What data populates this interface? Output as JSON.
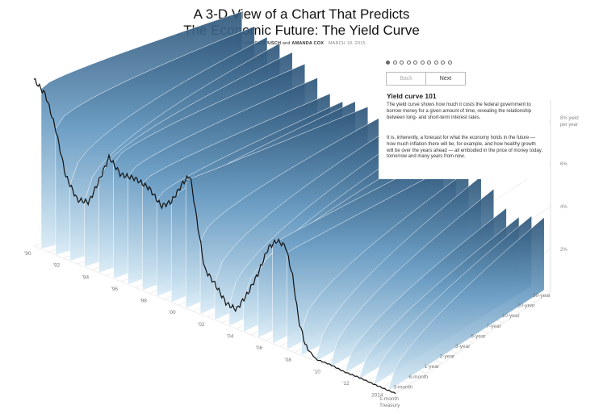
{
  "header": {
    "title_line1": "A 3-D View of a Chart That Predicts",
    "title_line2": "The Economic Future: The Yield Curve",
    "byline_by": "By",
    "author1": "GREGOR AISCH",
    "byline_and": "and",
    "author2": "AMANDA COX",
    "date": "MARCH 18, 2015"
  },
  "panel": {
    "dots": [
      true,
      false,
      false,
      false,
      false,
      false,
      false,
      false,
      false,
      false
    ],
    "back_label": "Back",
    "next_label": "Next",
    "title": "Yield curve 101",
    "para1": "The yield curve shows how much it costs the federal government to borrow money for a given amount of time, revealing the relationship between long- and short-term interest rates.",
    "para2": "It is, inherently, a forecast for what the economy holds in the future — how much inflation there will be, for example, and how healthy growth will be over the years ahead — all embodied in the price of money today, tomorrow and many years from now."
  },
  "chart_data": {
    "type": "area",
    "view": "3-D surface",
    "x_axis": {
      "label": "year",
      "ticks": [
        "'90",
        "'92",
        "'94",
        "'96",
        "'98",
        "'00",
        "'02",
        "'04",
        "'06",
        "'08",
        "'10",
        "'12",
        "2014"
      ]
    },
    "maturity_axis": {
      "ticks": [
        "1-month Treasury",
        "3-month",
        "6-month",
        "1-year",
        "2-year",
        "3-year",
        "5-year",
        "7-year",
        "10-year",
        "20-year",
        "30-year"
      ]
    },
    "y_axis": {
      "ticks": [
        "2%",
        "4%",
        "6%",
        "8% yield per year"
      ],
      "ylim": [
        0,
        9
      ]
    },
    "series": [
      {
        "name": "1-month Treasury",
        "x": [
          1990,
          1990.8,
          1991.5,
          1992.2,
          1993,
          1993.8,
          1994.5,
          1995.2,
          1996,
          1997,
          1998,
          1998.8,
          1999.5,
          2000.3,
          2000.8,
          2001.3,
          2001.8,
          2002.5,
          2003.3,
          2004,
          2004.8,
          2005.5,
          2006.2,
          2006.8,
          2007.4,
          2007.9,
          2008.3,
          2008.8,
          2009.5,
          2010.5,
          2011.5,
          2012.5,
          2013.5,
          2014.5
        ],
        "y": [
          7.8,
          7.3,
          5.9,
          3.9,
          3.0,
          3.1,
          4.3,
          5.6,
          5.0,
          5.1,
          4.9,
          4.3,
          4.7,
          5.8,
          6.3,
          4.2,
          2.2,
          1.7,
          1.0,
          0.9,
          1.9,
          3.0,
          4.4,
          4.9,
          4.8,
          3.5,
          1.6,
          0.5,
          0.1,
          0.12,
          0.05,
          0.07,
          0.04,
          0.02
        ]
      },
      {
        "name": "30-year",
        "x": [
          1990,
          1992,
          1994,
          1996,
          1998,
          2000,
          2002,
          2004,
          2006,
          2008,
          2010,
          2012,
          2014
        ],
        "y": [
          8.6,
          7.6,
          7.4,
          6.7,
          5.6,
          6.0,
          5.4,
          5.0,
          4.9,
          4.5,
          4.3,
          2.9,
          3.4
        ]
      }
    ]
  }
}
